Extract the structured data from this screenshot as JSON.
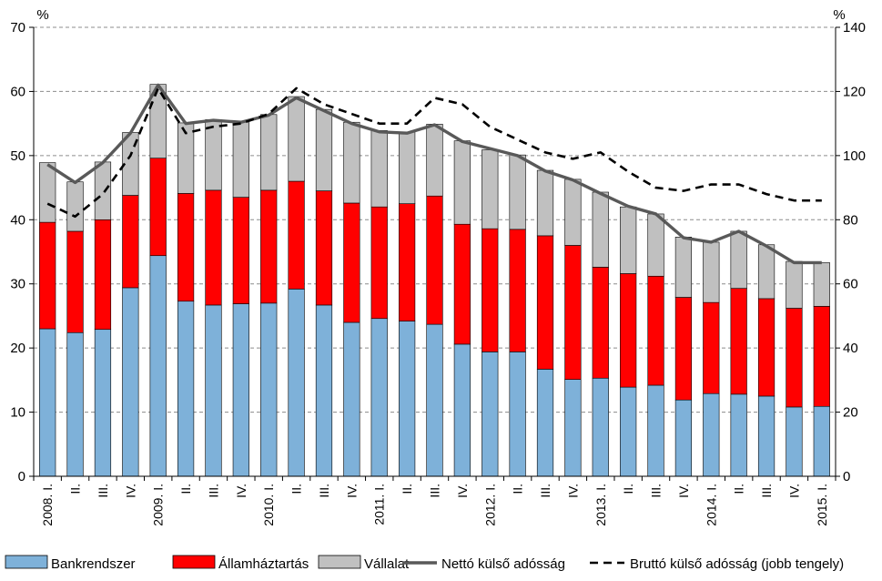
{
  "chart_data": {
    "type": "bar",
    "stacked": true,
    "grid": true,
    "legend_position": "bottom",
    "y_left": {
      "unit": "%",
      "ylim": [
        0,
        70
      ],
      "ticks": [
        "0",
        "10",
        "20",
        "30",
        "40",
        "50",
        "60",
        "70"
      ]
    },
    "y_right": {
      "unit": "%",
      "ylim": [
        0,
        140
      ],
      "ticks": [
        "0",
        "20",
        "40",
        "60",
        "80",
        "100",
        "120",
        "140"
      ]
    },
    "categories": [
      "2008. I.",
      "II.",
      "III.",
      "IV.",
      "2009. I.",
      "II.",
      "III.",
      "IV.",
      "2010. I.",
      "II.",
      "III.",
      "IV.",
      "2011. I.",
      "II.",
      "III.",
      "IV.",
      "2012. I.",
      "II.",
      "III.",
      "IV.",
      "2013. I.",
      "II.",
      "III.",
      "IV.",
      "2014. I.",
      "II.",
      "III.",
      "IV.",
      "2015. I."
    ],
    "series": [
      {
        "name": "Bankrendszer",
        "kind": "bar",
        "axis": "left",
        "color": "#7EB1D9",
        "values": [
          23.0,
          22.4,
          22.9,
          29.4,
          34.4,
          27.3,
          26.7,
          26.9,
          27.0,
          29.2,
          26.7,
          24.0,
          24.6,
          24.2,
          23.7,
          20.6,
          19.4,
          19.4,
          16.7,
          15.1,
          15.3,
          13.9,
          14.2,
          11.9,
          12.9,
          12.8,
          12.5,
          10.8,
          10.9
        ]
      },
      {
        "name": "Államháztartás",
        "kind": "bar",
        "axis": "left",
        "color": "#FF0000",
        "values": [
          16.6,
          15.8,
          17.1,
          14.4,
          15.2,
          16.8,
          17.9,
          16.6,
          17.6,
          16.8,
          17.8,
          18.6,
          17.4,
          18.3,
          20.0,
          18.7,
          19.2,
          19.1,
          20.8,
          20.9,
          17.3,
          17.7,
          17.0,
          16.0,
          14.2,
          16.5,
          15.2,
          15.4,
          15.6
        ]
      },
      {
        "name": "Vállalat",
        "kind": "bar",
        "axis": "left",
        "color": "#C0C0C0",
        "values": [
          9.3,
          7.7,
          9.0,
          9.8,
          11.5,
          11.0,
          11.0,
          11.9,
          11.8,
          13.2,
          12.7,
          12.6,
          11.9,
          11.2,
          11.2,
          13.0,
          12.3,
          11.6,
          10.2,
          10.3,
          11.7,
          10.4,
          9.7,
          9.4,
          9.4,
          8.9,
          8.4,
          7.3,
          6.8
        ]
      },
      {
        "name": "Nettó külső adósság",
        "kind": "line",
        "axis": "left",
        "color": "#595959",
        "values": [
          48.6,
          45.8,
          48.9,
          53.5,
          61.0,
          55.0,
          55.5,
          55.2,
          56.3,
          59.0,
          57.0,
          55.0,
          53.7,
          53.5,
          54.8,
          52.2,
          51.1,
          50.0,
          47.6,
          46.2,
          44.1,
          42.1,
          40.9,
          37.2,
          36.5,
          38.2,
          35.9,
          33.3,
          33.3
        ]
      },
      {
        "name": "Bruttó külső adósság (jobb tengely)",
        "kind": "line",
        "dashed": true,
        "axis": "right",
        "color": "#000000",
        "values": [
          85,
          81,
          88,
          100,
          121,
          107,
          109,
          110,
          113,
          121,
          116,
          113,
          110,
          110,
          118,
          116,
          109,
          105,
          101,
          99,
          101,
          95,
          90,
          89,
          91,
          91,
          88,
          86,
          86
        ]
      }
    ]
  }
}
